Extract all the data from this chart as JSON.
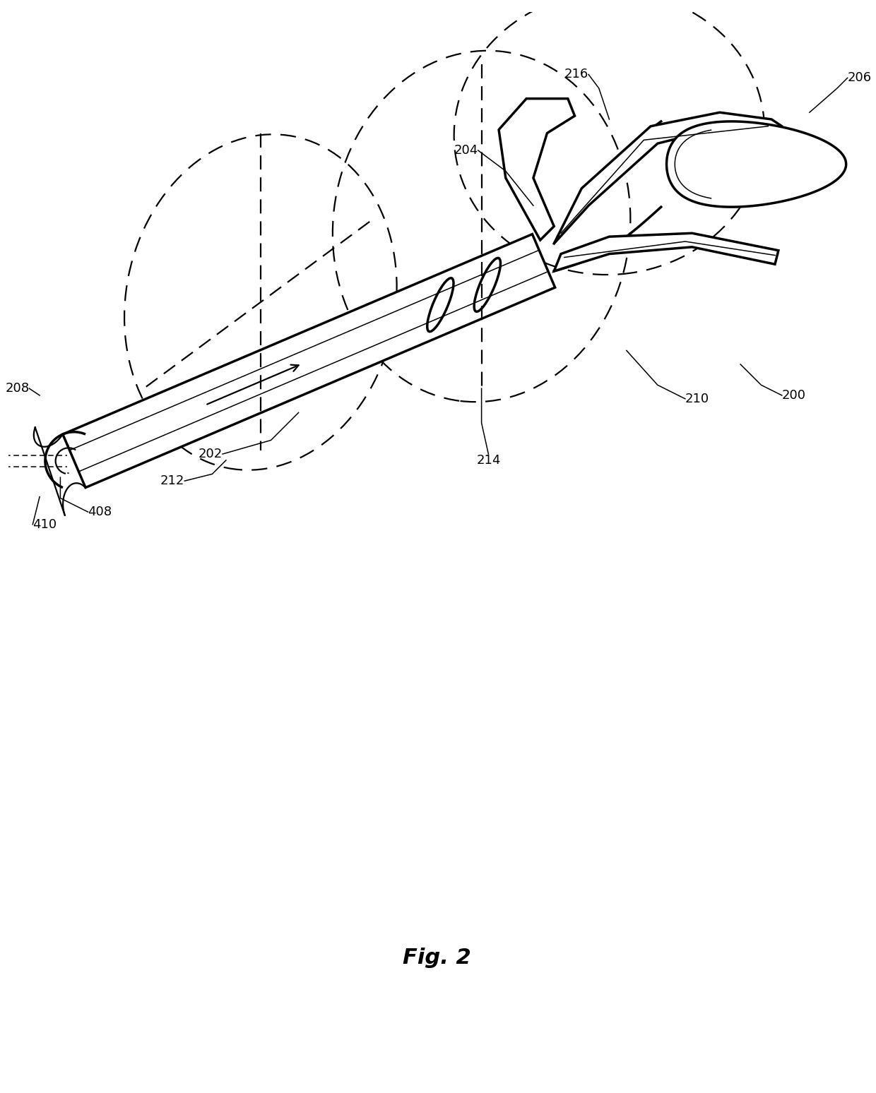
{
  "fig_label": "Fig. 2",
  "background_color": "#ffffff",
  "line_color": "#000000",
  "lw_thick": 2.5,
  "lw_med": 1.6,
  "lw_thin": 1.1,
  "label_fontsize": 13
}
